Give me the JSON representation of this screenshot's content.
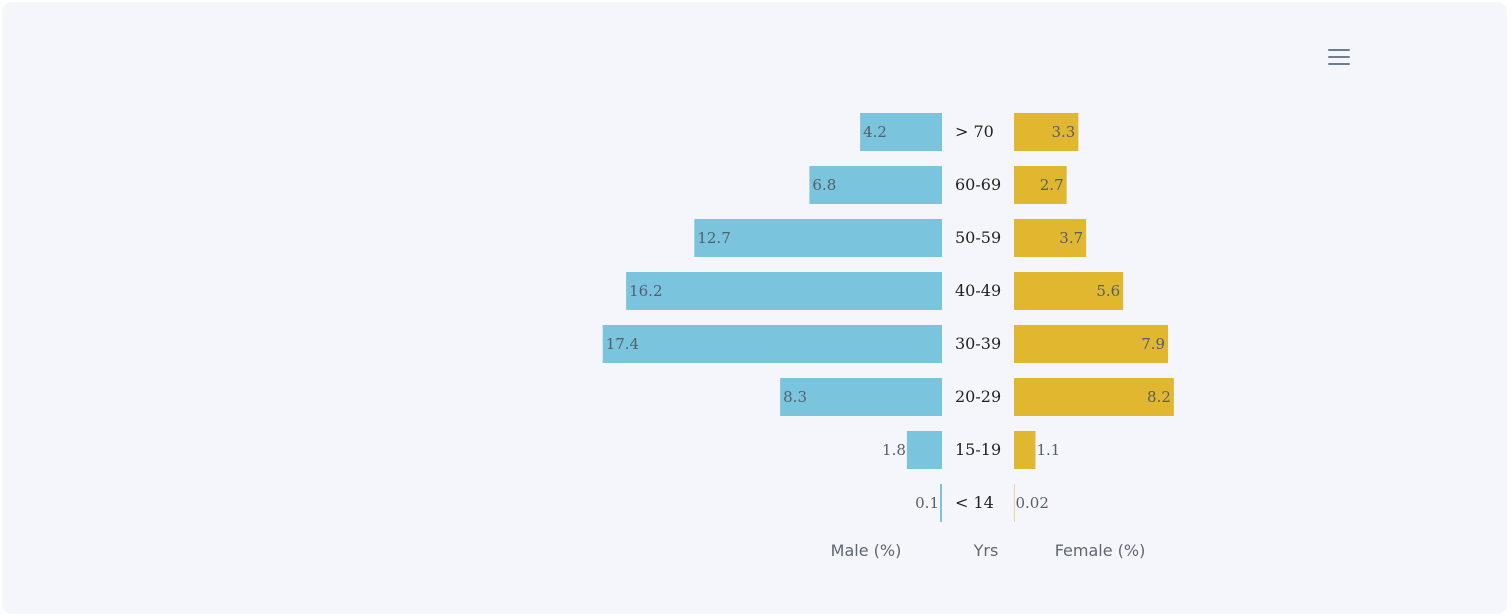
{
  "toolbar": {
    "menu_icon": "hamburger-menu-icon"
  },
  "chart_data": {
    "type": "bar",
    "orientation": "horizontal-butterfly",
    "categories": [
      "> 70",
      "60-69",
      "50-59",
      "40-49",
      "30-39",
      "20-29",
      "15-19",
      "< 14"
    ],
    "series": [
      {
        "name": "Male (%)",
        "values": [
          4.2,
          6.8,
          12.7,
          16.2,
          17.4,
          8.3,
          1.8,
          0.1
        ],
        "color": "#7ac4de",
        "label_text": [
          "4.2",
          "6.8",
          "12.7",
          "16.2",
          "17.4",
          "8.3",
          "1.8",
          "0.1"
        ]
      },
      {
        "name": "Female (%)",
        "values": [
          3.3,
          2.7,
          3.7,
          5.6,
          7.9,
          8.2,
          1.1,
          0.02
        ],
        "color": "#e1b730",
        "label_text": [
          "3.3",
          "2.7",
          "3.7",
          "5.6",
          "7.9",
          "8.2",
          "1.1",
          "0.02"
        ]
      }
    ],
    "xlabel_left": "Male (%)",
    "xlabel_center": "Yrs",
    "xlabel_right": "Female (%)"
  }
}
